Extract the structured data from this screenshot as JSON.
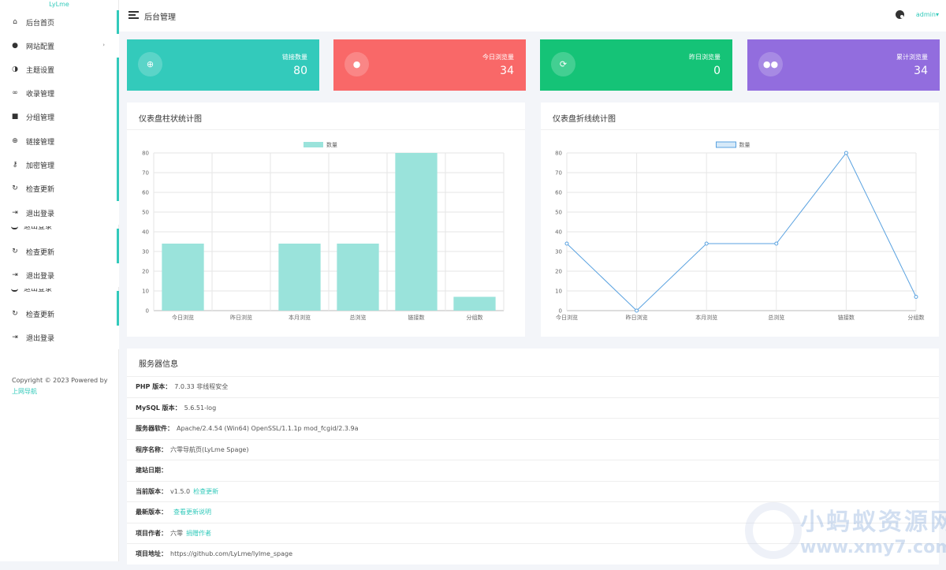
{
  "sidebar": {
    "brand": "LyLme",
    "items": [
      {
        "label": "后台首页",
        "icon": "home-icon"
      },
      {
        "label": "网站配置",
        "icon": "palette-icon",
        "has_sub": true
      },
      {
        "label": "主题设置",
        "icon": "contrast-icon"
      },
      {
        "label": "收录管理",
        "icon": "link-icon"
      },
      {
        "label": "分组管理",
        "icon": "folder-icon"
      },
      {
        "label": "链接管理",
        "icon": "globe-icon"
      },
      {
        "label": "加密管理",
        "icon": "key-icon"
      },
      {
        "label": "检查更新",
        "icon": "refresh-icon"
      },
      {
        "label": "退出登录",
        "icon": "logout-icon"
      }
    ],
    "ghost_label": "退出登录",
    "dup1": {
      "update": "检查更新",
      "logout": "退出登录"
    },
    "dup2": {
      "update": "检查更新",
      "logout": "退出登录"
    },
    "copyright_text": "Copyright © 2023 Powered by",
    "copyright_link": "上网导航"
  },
  "header": {
    "title": "后台管理",
    "user": "admin"
  },
  "stats": [
    {
      "label": "链接数量",
      "value": "80",
      "color": "#33cabb",
      "icon": "globe-icon"
    },
    {
      "label": "今日浏览量",
      "value": "34",
      "color": "#f96868",
      "icon": "user-icon"
    },
    {
      "label": "昨日浏览量",
      "value": "0",
      "color": "#15c377",
      "icon": "sync-icon"
    },
    {
      "label": "累计浏览量",
      "value": "34",
      "color": "#926dde",
      "icon": "users-icon"
    }
  ],
  "bar_panel": {
    "title": "仪表盘柱状统计图"
  },
  "line_panel": {
    "title": "仪表盘折线统计图"
  },
  "chart_data": [
    {
      "type": "bar",
      "categories": [
        "今日浏览",
        "昨日浏览",
        "本月浏览",
        "总浏览",
        "链接数",
        "分组数"
      ],
      "series": [
        {
          "name": "数量",
          "values": [
            34,
            0,
            34,
            34,
            80,
            7
          ],
          "color": "#9ae3db"
        }
      ],
      "ylim": [
        0,
        80
      ],
      "yticks": [
        0,
        10,
        20,
        30,
        40,
        50,
        60,
        70,
        80
      ],
      "grid": true,
      "legend": "top-center"
    },
    {
      "type": "line",
      "categories": [
        "今日浏览",
        "昨日浏览",
        "本月浏览",
        "总浏览",
        "链接数",
        "分组数"
      ],
      "series": [
        {
          "name": "数量",
          "values": [
            34,
            0,
            34,
            34,
            80,
            7
          ],
          "color": "#5aa2e0"
        }
      ],
      "ylim": [
        0,
        80
      ],
      "yticks": [
        0,
        10,
        20,
        30,
        40,
        50,
        60,
        70,
        80
      ],
      "grid": true,
      "legend": "top-center"
    }
  ],
  "server": {
    "title": "服务器信息",
    "rows": [
      {
        "key": "PHP 版本：",
        "value": "7.0.33 非线程安全",
        "link": ""
      },
      {
        "key": "MySQL 版本：",
        "value": "5.6.51-log",
        "link": ""
      },
      {
        "key": "服务器软件：",
        "value": "Apache/2.4.54 (Win64) OpenSSL/1.1.1p mod_fcgid/2.3.9a",
        "link": ""
      },
      {
        "key": "程序名称：",
        "value": "六零导航页(LyLme Spage)",
        "link": ""
      },
      {
        "key": "建站日期：",
        "value": "",
        "link": ""
      },
      {
        "key": "当前版本：",
        "value": "v1.5.0",
        "link": "检查更新"
      },
      {
        "key": "最新版本：",
        "value": "",
        "link": "查看更新说明"
      },
      {
        "key": "项目作者：",
        "value": "六零",
        "link": "捐赠作者"
      },
      {
        "key": "项目地址：",
        "value": "https://github.com/LyLme/lylme_spage",
        "link": ""
      }
    ]
  },
  "watermark": {
    "line1": "小蚂蚁资源网",
    "line2": "www.xmy7.com"
  }
}
